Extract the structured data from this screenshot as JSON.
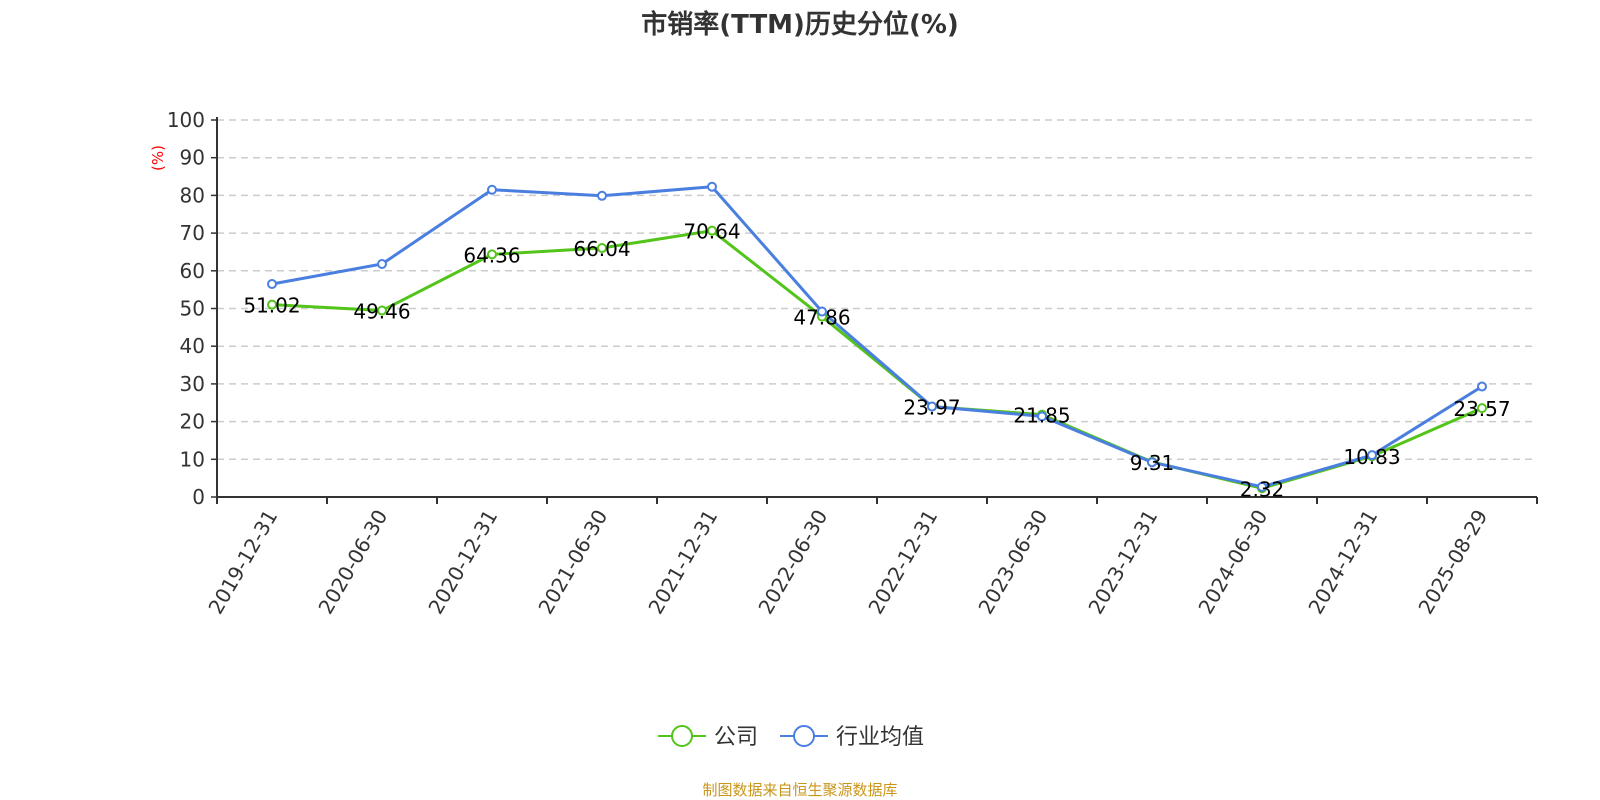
{
  "chart_data": {
    "type": "line",
    "title": "市销率(TTM)历史分位(%)",
    "ylabel": "(%)",
    "xlabel": "",
    "ylim": [
      0,
      100
    ],
    "yticks": [
      0,
      10,
      20,
      30,
      40,
      50,
      60,
      70,
      80,
      90,
      100
    ],
    "grid": true,
    "legend_position": "bottom",
    "categories": [
      "2019-12-31",
      "2020-06-30",
      "2020-12-31",
      "2021-06-30",
      "2021-12-31",
      "2022-06-30",
      "2022-12-31",
      "2023-06-30",
      "2023-12-31",
      "2024-06-30",
      "2024-12-31",
      "2025-08-29"
    ],
    "series": [
      {
        "name": "公司",
        "color": "#52c41a",
        "labels_shown": true,
        "values": [
          51.02,
          49.46,
          64.36,
          66.04,
          70.64,
          47.86,
          23.97,
          21.85,
          9.31,
          2.32,
          10.83,
          23.57
        ]
      },
      {
        "name": "行业均值",
        "color": "#4a7fe0",
        "labels_shown": false,
        "values": [
          56.5,
          61.8,
          81.5,
          79.9,
          82.3,
          49.2,
          24.0,
          21.4,
          9.2,
          2.7,
          11.1,
          29.3
        ]
      }
    ],
    "source": "制图数据来自恒生聚源数据库"
  }
}
